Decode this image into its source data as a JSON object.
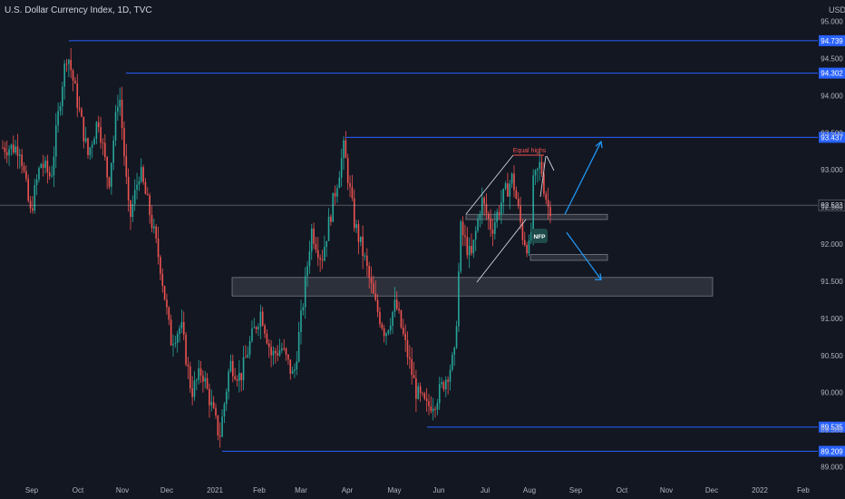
{
  "header": {
    "title": "U.S. Dollar Currency Index, 1D, TVC",
    "currency": "USD"
  },
  "colors": {
    "background": "#131722",
    "up": "#26a69a",
    "down": "#ef5350",
    "line": "#2962ff",
    "annotation": "#2196f3",
    "white": "#d1d4dc",
    "label_bg": "#2962ff"
  },
  "chart_data": {
    "type": "candlestick",
    "title": "U.S. Dollar Currency Index, 1D, TVC",
    "ylim": [
      88.8,
      95.2
    ],
    "y_ticks": [
      "95.000",
      "94.500",
      "94.000",
      "93.500",
      "93.000",
      "92.500",
      "92.000",
      "91.500",
      "91.000",
      "90.500",
      "90.000",
      "89.500",
      "89.000"
    ],
    "x_ticks": [
      "Sep",
      "Oct",
      "Nov",
      "Dec",
      "2021",
      "Feb",
      "Mar",
      "Apr",
      "May",
      "Jun",
      "Jul",
      "Aug",
      "Sep",
      "Oct",
      "Nov",
      "Dec",
      "2022",
      "Feb"
    ],
    "current_price": "92.523",
    "grid": false,
    "levels": [
      {
        "label": "94.739",
        "value": 94.739
      },
      {
        "label": "94.302",
        "value": 94.302
      },
      {
        "label": "93.437",
        "value": 93.437
      },
      {
        "label": "89.535",
        "value": 89.535
      },
      {
        "label": "89.209",
        "value": 89.209
      }
    ],
    "zones": [
      {
        "y_low": 91.3,
        "y_high": 91.55
      },
      {
        "y_low": 92.33,
        "y_high": 92.4
      },
      {
        "y_low": 91.78,
        "y_high": 91.86
      }
    ],
    "annotations": [
      {
        "text": "Equal highs",
        "value": 93.15
      },
      {
        "text": "NFP",
        "value": 92.11
      }
    ],
    "projection": {
      "from": 92.4,
      "up_to": 93.38,
      "down_to": 91.52
    },
    "price_path": [
      [
        "2020-08-24",
        93.3
      ],
      [
        "2020-08-31",
        92.4
      ],
      [
        "2020-09-07",
        93.1
      ],
      [
        "2020-09-14",
        92.9
      ],
      [
        "2020-09-21",
        94.1
      ],
      [
        "2020-09-25",
        94.6
      ],
      [
        "2020-10-02",
        93.9
      ],
      [
        "2020-10-09",
        93.2
      ],
      [
        "2020-10-16",
        93.7
      ],
      [
        "2020-10-23",
        92.8
      ],
      [
        "2020-10-30",
        94.1
      ],
      [
        "2020-11-06",
        92.3
      ],
      [
        "2020-11-13",
        93.0
      ],
      [
        "2020-11-20",
        92.4
      ],
      [
        "2020-11-27",
        91.7
      ],
      [
        "2020-12-04",
        90.7
      ],
      [
        "2020-12-11",
        90.9
      ],
      [
        "2020-12-18",
        90.0
      ],
      [
        "2020-12-25",
        90.3
      ],
      [
        "2021-01-06",
        89.4
      ],
      [
        "2021-01-13",
        90.4
      ],
      [
        "2021-01-20",
        90.2
      ],
      [
        "2021-01-27",
        90.7
      ],
      [
        "2021-02-03",
        91.1
      ],
      [
        "2021-02-10",
        90.5
      ],
      [
        "2021-02-17",
        90.6
      ],
      [
        "2021-02-25",
        90.2
      ],
      [
        "2021-03-04",
        91.3
      ],
      [
        "2021-03-09",
        92.2
      ],
      [
        "2021-03-16",
        91.8
      ],
      [
        "2021-03-23",
        92.5
      ],
      [
        "2021-03-31",
        93.3
      ],
      [
        "2021-04-07",
        92.3
      ],
      [
        "2021-04-14",
        91.8
      ],
      [
        "2021-04-21",
        91.2
      ],
      [
        "2021-04-28",
        90.8
      ],
      [
        "2021-05-05",
        91.2
      ],
      [
        "2021-05-12",
        90.6
      ],
      [
        "2021-05-19",
        90.0
      ],
      [
        "2021-05-26",
        89.8
      ],
      [
        "2021-06-01",
        89.9
      ],
      [
        "2021-06-08",
        90.2
      ],
      [
        "2021-06-14",
        90.5
      ],
      [
        "2021-06-18",
        92.2
      ],
      [
        "2021-06-25",
        91.8
      ],
      [
        "2021-07-02",
        92.6
      ],
      [
        "2021-07-09",
        92.2
      ],
      [
        "2021-07-16",
        92.6
      ],
      [
        "2021-07-23",
        92.9
      ],
      [
        "2021-07-30",
        92.1
      ],
      [
        "2021-08-04",
        91.9
      ],
      [
        "2021-08-06",
        92.8
      ],
      [
        "2021-08-11",
        93.1
      ],
      [
        "2021-08-13",
        92.8
      ],
      [
        "2021-08-16",
        92.5
      ]
    ]
  }
}
